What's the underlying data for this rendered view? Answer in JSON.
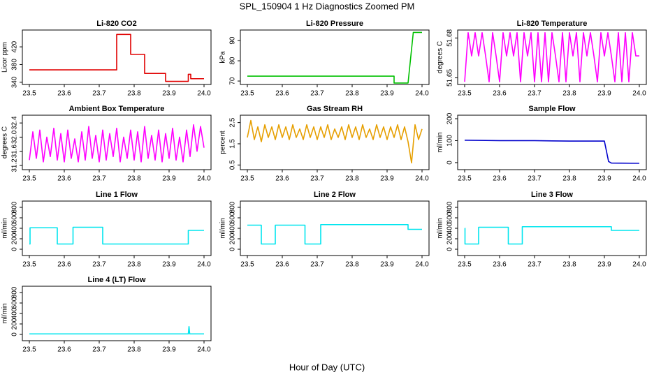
{
  "title": "SPL_150904  1 Hz Diagnostics Zoomed PM",
  "x_label": "Hour of Day (UTC)",
  "chart_data": [
    {
      "type": "line",
      "title": "Li-820 CO2",
      "y_label": "Licor ppm",
      "color": "#e00000",
      "x": [
        23.5,
        23.75,
        23.75,
        23.79,
        23.79,
        23.83,
        23.83,
        23.89,
        23.89,
        23.955,
        23.955,
        23.962,
        23.962,
        24.0
      ],
      "values": [
        368,
        368,
        448,
        448,
        403,
        403,
        360,
        360,
        342,
        342,
        358,
        358,
        348,
        348
      ],
      "xlim": [
        23.48,
        24.02
      ],
      "xticks": [
        23.5,
        23.6,
        23.7,
        23.8,
        23.9,
        {
          "value": 24,
          "label": "24.0"
        }
      ],
      "ylim": [
        335,
        458
      ],
      "yticks": [
        340,
        380,
        420
      ]
    },
    {
      "type": "line",
      "title": "Li-820 Pressure",
      "y_label": "kPa",
      "color": "#00c000",
      "x": [
        23.5,
        23.92,
        23.92,
        23.96,
        23.975,
        24.0
      ],
      "values": [
        72.4,
        72.4,
        69,
        69,
        94,
        94
      ],
      "xlim": [
        23.48,
        24.02
      ],
      "xticks": [
        23.5,
        23.6,
        23.7,
        23.8,
        23.9,
        {
          "value": 24,
          "label": "24.0"
        }
      ],
      "ylim": [
        68.3,
        95.2
      ],
      "yticks": [
        70,
        80,
        90
      ]
    },
    {
      "type": "line",
      "title": "Li-820 Temperature",
      "y_label": "degrees C",
      "color": "#ff00ff",
      "x": [
        23.5,
        23.51,
        23.52,
        23.53,
        23.54,
        23.55,
        23.56,
        23.57,
        23.58,
        23.59,
        23.6,
        23.61,
        23.62,
        23.63,
        23.64,
        23.65,
        23.66,
        23.67,
        23.68,
        23.69,
        23.7,
        23.71,
        23.72,
        23.73,
        23.74,
        23.75,
        23.76,
        23.77,
        23.78,
        23.79,
        23.8,
        23.81,
        23.82,
        23.83,
        23.84,
        23.85,
        23.86,
        23.87,
        23.88,
        23.89,
        23.9,
        23.91,
        23.92,
        23.93,
        23.94,
        23.95,
        23.96,
        23.97,
        23.98,
        23.99,
        24.0
      ],
      "values": [
        51.647,
        51.684,
        51.6665,
        51.684,
        51.6665,
        51.684,
        51.6665,
        51.647,
        51.684,
        51.6665,
        51.647,
        51.684,
        51.6665,
        51.684,
        51.6665,
        51.684,
        51.647,
        51.684,
        51.6665,
        51.684,
        51.647,
        51.684,
        51.647,
        51.684,
        51.647,
        51.684,
        51.6665,
        51.647,
        51.684,
        51.647,
        51.684,
        51.6665,
        51.684,
        51.647,
        51.684,
        51.6665,
        51.684,
        51.6665,
        51.647,
        51.684,
        51.6665,
        51.684,
        51.6665,
        51.647,
        51.684,
        51.647,
        51.684,
        51.647,
        51.684,
        51.6665,
        51.6665
      ],
      "xlim": [
        23.48,
        24.02
      ],
      "xticks": [
        23.5,
        23.6,
        23.7,
        23.8,
        23.9,
        {
          "value": 24,
          "label": "24.0"
        }
      ],
      "ylim": [
        51.645,
        51.686
      ],
      "yticks": [
        51.65,
        51.68
      ]
    },
    {
      "type": "line",
      "title": "Ambient Box Temperature",
      "y_label": "degrees C",
      "color": "#ff00ff",
      "x": [
        23.5,
        23.51,
        23.52,
        23.53,
        23.54,
        23.55,
        23.56,
        23.57,
        23.58,
        23.59,
        23.6,
        23.61,
        23.62,
        23.63,
        23.64,
        23.65,
        23.66,
        23.67,
        23.68,
        23.69,
        23.7,
        23.71,
        23.72,
        23.73,
        23.74,
        23.75,
        23.76,
        23.77,
        23.78,
        23.79,
        23.8,
        23.81,
        23.82,
        23.83,
        23.84,
        23.85,
        23.86,
        23.87,
        23.88,
        23.89,
        23.9,
        23.91,
        23.92,
        23.93,
        23.94,
        23.95,
        23.96,
        23.97,
        23.98,
        23.99,
        24.0
      ],
      "values": [
        31.35,
        32.15,
        31.4,
        32.2,
        31.3,
        32.0,
        31.45,
        32.25,
        31.35,
        32.1,
        31.3,
        32.2,
        31.4,
        31.95,
        31.3,
        32.15,
        31.35,
        32.3,
        31.4,
        32.05,
        31.3,
        32.2,
        31.35,
        32.1,
        31.45,
        32.25,
        31.3,
        32.0,
        31.4,
        32.2,
        31.35,
        32.15,
        31.3,
        32.3,
        31.4,
        32.05,
        31.35,
        32.2,
        31.3,
        32.1,
        31.4,
        32.25,
        31.35,
        32.0,
        31.3,
        32.2,
        31.45,
        32.35,
        31.6,
        32.3,
        31.7
      ],
      "xlim": [
        23.48,
        24.02
      ],
      "xticks": [
        23.5,
        23.6,
        23.7,
        23.8,
        23.9,
        {
          "value": 24,
          "label": "24.0"
        }
      ],
      "ylim": [
        31.08,
        32.62
      ],
      "yticks": [
        31.2,
        31.6,
        {
          "value": 32,
          "label": "32.0"
        },
        32.4
      ]
    },
    {
      "type": "line",
      "title": "Gas Stream RH",
      "y_label": "percent",
      "color": "#e69f00",
      "x": [
        23.5,
        23.51,
        23.52,
        23.53,
        23.54,
        23.55,
        23.56,
        23.57,
        23.58,
        23.59,
        23.6,
        23.61,
        23.62,
        23.63,
        23.64,
        23.65,
        23.66,
        23.67,
        23.68,
        23.69,
        23.7,
        23.71,
        23.72,
        23.73,
        23.74,
        23.75,
        23.76,
        23.77,
        23.78,
        23.79,
        23.8,
        23.81,
        23.82,
        23.83,
        23.84,
        23.85,
        23.86,
        23.87,
        23.88,
        23.89,
        23.9,
        23.91,
        23.92,
        23.93,
        23.94,
        23.95,
        23.96,
        23.97,
        23.98,
        23.99,
        24.0
      ],
      "values": [
        1.8,
        2.6,
        1.7,
        2.3,
        1.6,
        2.4,
        1.8,
        2.3,
        1.7,
        2.4,
        1.8,
        2.3,
        1.7,
        2.4,
        1.8,
        2.2,
        1.7,
        2.4,
        1.8,
        2.3,
        1.7,
        2.3,
        1.8,
        2.4,
        1.7,
        2.2,
        1.8,
        2.3,
        1.7,
        2.4,
        1.8,
        2.3,
        1.7,
        2.4,
        1.8,
        2.2,
        1.7,
        2.4,
        1.8,
        2.3,
        1.7,
        2.3,
        1.8,
        2.4,
        1.7,
        2.3,
        1.6,
        0.6,
        2.4,
        1.7,
        2.2
      ],
      "xlim": [
        23.48,
        24.02
      ],
      "xticks": [
        23.5,
        23.6,
        23.7,
        23.8,
        23.9,
        {
          "value": 24,
          "label": "24.0"
        }
      ],
      "ylim": [
        0.28,
        2.85
      ],
      "yticks": [
        0.5,
        1.5,
        2.5
      ]
    },
    {
      "type": "line",
      "title": "Sample Flow",
      "y_label": "ml/min",
      "color": "#0000cc",
      "x": [
        23.5,
        23.6,
        23.7,
        23.75,
        23.8,
        23.9,
        23.912,
        23.92,
        24.0
      ],
      "values": [
        102,
        100,
        100,
        99,
        98,
        98,
        5,
        -2,
        -3
      ],
      "xlim": [
        23.48,
        24.02
      ],
      "xticks": [
        23.5,
        23.6,
        23.7,
        23.8,
        23.9,
        {
          "value": 24,
          "label": "24.0"
        }
      ],
      "ylim": [
        -32,
        216
      ],
      "yticks": [
        0,
        100,
        200
      ]
    },
    {
      "type": "line",
      "title": "Line 1 Flow",
      "y_label": "ml/min",
      "color": "#00e5ee",
      "x": [
        23.5,
        23.502,
        23.502,
        23.58,
        23.58,
        23.625,
        23.625,
        23.71,
        23.71,
        23.955,
        23.955,
        24.0
      ],
      "values": [
        100,
        100,
        410,
        410,
        100,
        100,
        420,
        420,
        100,
        100,
        360,
        360
      ],
      "xlim": [
        23.48,
        24.02
      ],
      "xticks": [
        23.5,
        23.6,
        23.7,
        23.8,
        23.9,
        {
          "value": 24,
          "label": "24.0"
        }
      ],
      "ylim": [
        -120,
        920
      ],
      "yticks": [
        0,
        200,
        400,
        600,
        800
      ]
    },
    {
      "type": "line",
      "title": "Line 2 Flow",
      "y_label": "ml/min",
      "color": "#00e5ee",
      "x": [
        23.5,
        23.54,
        23.54,
        23.58,
        23.58,
        23.665,
        23.665,
        23.71,
        23.71,
        23.96,
        23.96,
        24.0
      ],
      "values": [
        460,
        460,
        100,
        100,
        460,
        460,
        100,
        100,
        470,
        470,
        380,
        380
      ],
      "xlim": [
        23.48,
        24.02
      ],
      "xticks": [
        23.5,
        23.6,
        23.7,
        23.8,
        23.9,
        {
          "value": 24,
          "label": "24.0"
        }
      ],
      "ylim": [
        -120,
        920
      ],
      "yticks": [
        0,
        200,
        400,
        600,
        800
      ]
    },
    {
      "type": "line",
      "title": "Line 3 Flow",
      "y_label": "ml/min",
      "color": "#00e5ee",
      "x": [
        23.5,
        23.501,
        23.501,
        23.54,
        23.54,
        23.625,
        23.625,
        23.665,
        23.665,
        23.92,
        23.92,
        24.0
      ],
      "values": [
        400,
        400,
        100,
        100,
        420,
        420,
        100,
        100,
        430,
        430,
        360,
        360
      ],
      "xlim": [
        23.48,
        24.02
      ],
      "xticks": [
        23.5,
        23.6,
        23.7,
        23.8,
        23.9,
        {
          "value": 24,
          "label": "24.0"
        }
      ],
      "ylim": [
        -120,
        920
      ],
      "yticks": [
        0,
        200,
        400,
        600,
        800
      ]
    },
    {
      "type": "line",
      "title": "Line 4 (LT) Flow",
      "y_label": "ml/min",
      "color": "#00e5ee",
      "x": [
        23.5,
        23.955,
        23.957,
        23.959,
        24.0
      ],
      "values": [
        10,
        10,
        150,
        10,
        10
      ],
      "xlim": [
        23.48,
        24.02
      ],
      "xticks": [
        23.5,
        23.6,
        23.7,
        23.8,
        23.9,
        {
          "value": 24,
          "label": "24.0"
        }
      ],
      "ylim": [
        -120,
        920
      ],
      "yticks": [
        0,
        200,
        400,
        600,
        800
      ]
    }
  ]
}
